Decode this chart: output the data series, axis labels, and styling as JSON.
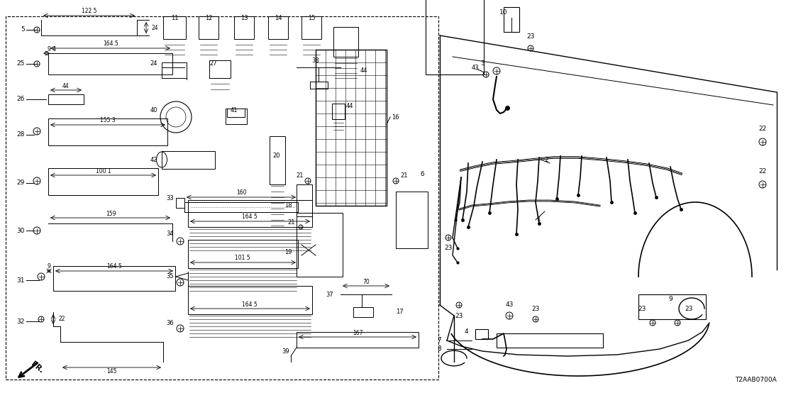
{
  "bg_color": "#ffffff",
  "line_color": "#000000",
  "fig_width": 11.08,
  "fig_height": 5.54,
  "dpi": 100,
  "diagram_id": "T2AAB0700A"
}
